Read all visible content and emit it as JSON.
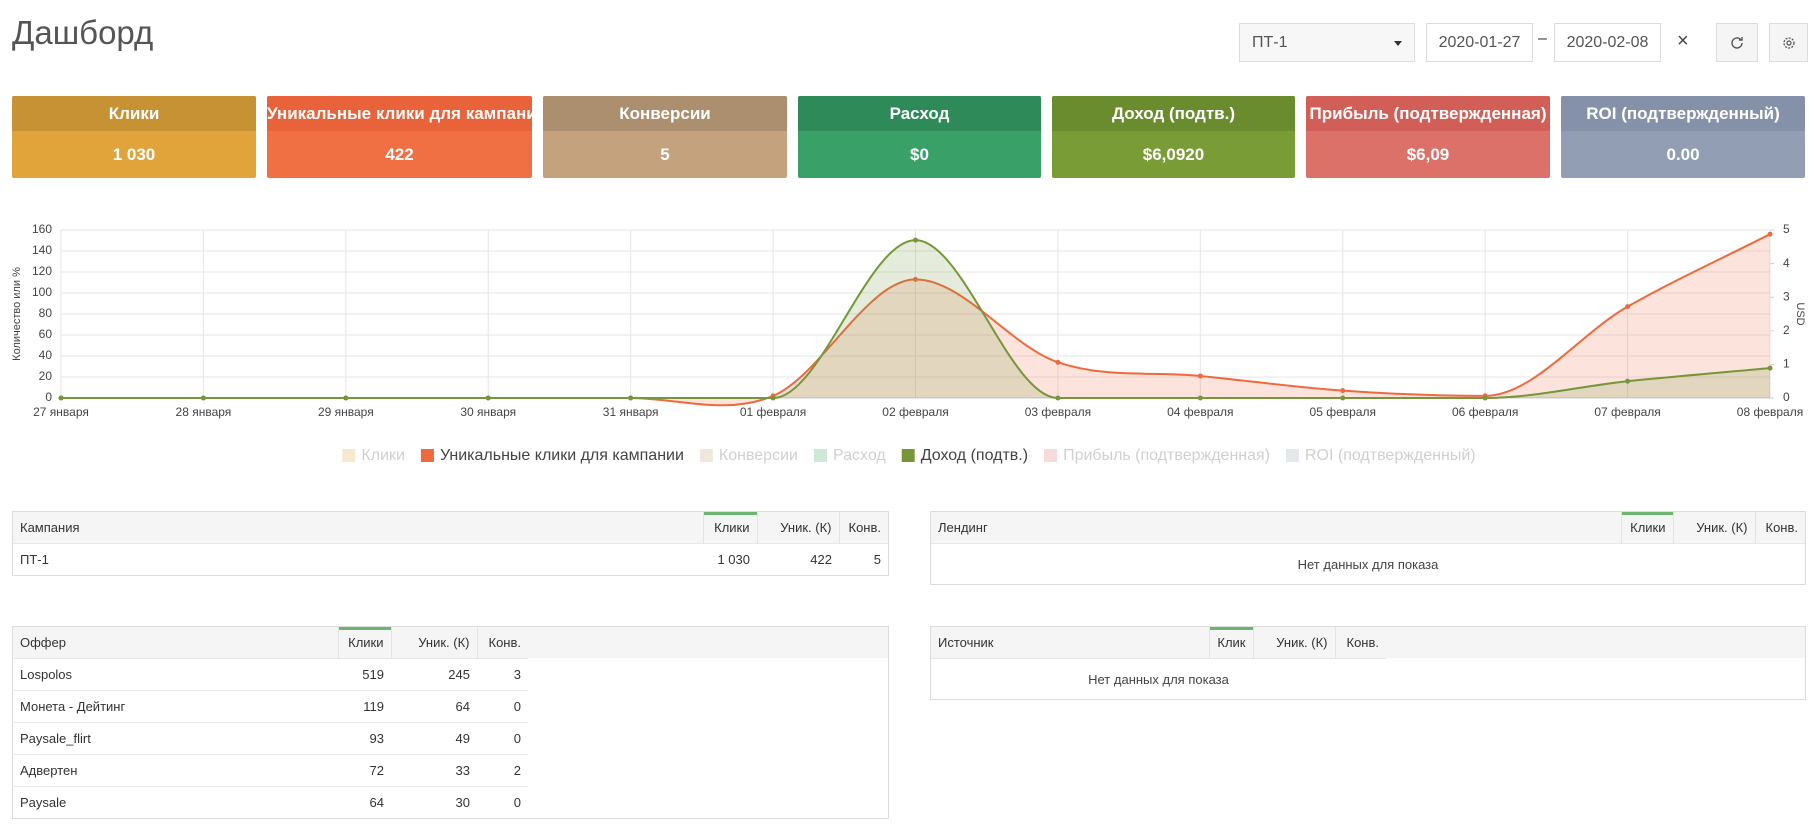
{
  "header": {
    "title": "Дашборд",
    "campaign_select": "ПТ-1",
    "date_from": "2020-01-27",
    "date_separator": "–",
    "date_to": "2020-02-08",
    "clear": "×"
  },
  "cards": [
    {
      "title": "Клики",
      "value": "1 030",
      "header_color": "#c69234",
      "color": "#e0a43b"
    },
    {
      "title": "Уникальные клики для кампании",
      "value": "422",
      "header_color": "#e8633a",
      "color": "#f07043"
    },
    {
      "title": "Конверсии",
      "value": "5",
      "header_color": "#ab8f6e",
      "color": "#c4a27d"
    },
    {
      "title": "Расход",
      "value": "$0",
      "header_color": "#2e8a58",
      "color": "#39a067"
    },
    {
      "title": "Доход (подтв.)",
      "value": "$6,0920",
      "header_color": "#6b8c2e",
      "color": "#7a9c37"
    },
    {
      "title": "Прибыль (подтвержденная)",
      "value": "$6,09",
      "header_color": "#d15f58",
      "color": "#dc716a"
    },
    {
      "title": "ROI (подтвержденный)",
      "value": "0.00",
      "header_color": "#8491a8",
      "color": "#929eb3"
    }
  ],
  "chart_data": {
    "type": "line",
    "y_label": "Количество или %",
    "y2_label": "USD",
    "categories": [
      "27 января",
      "28 января",
      "29 января",
      "30 января",
      "31 января",
      "01 февраля",
      "02 февраля",
      "03 февраля",
      "04 февраля",
      "05 февраля",
      "06 февраля",
      "07 февраля",
      "08 февраля"
    ],
    "ylim": [
      0,
      160
    ],
    "yticks": [
      0,
      20,
      40,
      60,
      80,
      100,
      120,
      140,
      160
    ],
    "y2lim": [
      0,
      5
    ],
    "y2ticks": [
      0,
      1,
      2,
      3,
      4,
      5
    ],
    "grid": true,
    "legend": "bottom",
    "series": [
      {
        "name": "Клики",
        "color": "#e0a43b",
        "hidden": true
      },
      {
        "name": "Уникальные клики для кампании",
        "color": "#ee6a3e",
        "values": [
          0,
          0,
          0,
          0,
          0,
          2,
          113,
          34,
          21,
          7,
          2,
          87,
          156
        ]
      },
      {
        "name": "Конверсии",
        "color": "#c4a27d",
        "hidden": true
      },
      {
        "name": "Расход",
        "color": "#39a067",
        "hidden": true
      },
      {
        "name": "Доход (подтв.)",
        "color": "#76963a",
        "axis": "y2",
        "values": [
          0,
          0,
          0,
          0,
          0,
          0,
          4.7,
          0,
          0,
          0,
          0,
          0.5,
          0.89
        ]
      },
      {
        "name": "Прибыль (подтвержденная)",
        "color": "#dc716a",
        "hidden": true
      },
      {
        "name": "ROI (подтвержденный)",
        "color": "#929eb3",
        "hidden": true
      }
    ]
  },
  "tables": {
    "campaigns": {
      "columns": [
        "Кампания",
        "Клики",
        "Уник. (К)",
        "Конв."
      ],
      "rows": [
        [
          "ПТ-1",
          "1 030",
          422,
          5
        ]
      ]
    },
    "landings": {
      "columns": [
        "Лендинг",
        "Клики",
        "Уник. (К)",
        "Конв."
      ],
      "empty": "Нет данных для показа"
    },
    "offers": {
      "columns": [
        "Оффер",
        "Клики",
        "Уник. (К)",
        "Конв."
      ],
      "rows": [
        [
          "Lospolos",
          519,
          245,
          3
        ],
        [
          "Монета - Дейтинг",
          119,
          64,
          0
        ],
        [
          "Paysale_flirt",
          93,
          49,
          0
        ],
        [
          "Адвертен",
          72,
          33,
          2
        ],
        [
          "Paysale",
          64,
          30,
          0
        ]
      ]
    },
    "sources": {
      "columns": [
        "Источник",
        "Клик",
        "Уник. (К)",
        "Конв."
      ],
      "empty": "Нет данных для показа"
    }
  }
}
